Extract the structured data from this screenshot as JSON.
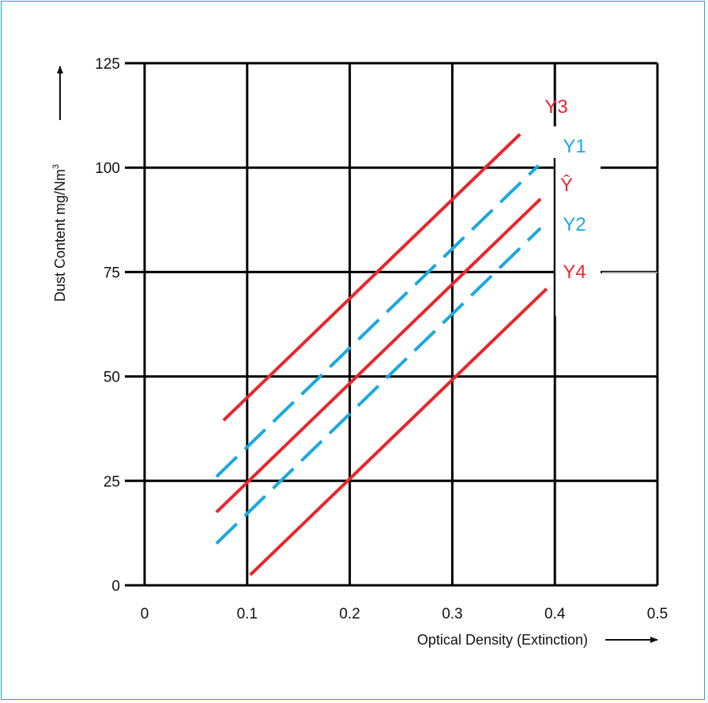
{
  "chart_data": {
    "type": "line",
    "xlabel": "Optical Density (Extinction)",
    "ylabel": "Dust Content mg/Nm",
    "ylabel_superscript": "3",
    "x_ticks": [
      "0",
      "0.1",
      "0.2",
      "0.3",
      "0.4",
      "0.5"
    ],
    "y_ticks": [
      "0",
      "25",
      "50",
      "75",
      "100",
      "125"
    ],
    "xlim": [
      0,
      0.5
    ],
    "ylim": [
      0,
      125
    ],
    "grid": true,
    "series": [
      {
        "name": "Y3",
        "color": "#e8262c",
        "style": "solid",
        "x": [
          0.077,
          0.366
        ],
        "y": [
          39.5,
          108
        ]
      },
      {
        "name": "Y1",
        "color": "#1aa8e0",
        "style": "dashed",
        "x": [
          0.07,
          0.384
        ],
        "y": [
          26,
          100.5
        ]
      },
      {
        "name": "Ŷ",
        "color": "#e8262c",
        "style": "solid",
        "x": [
          0.07,
          0.386
        ],
        "y": [
          17.5,
          92.5
        ]
      },
      {
        "name": "Y2",
        "color": "#1aa8e0",
        "style": "dashed",
        "x": [
          0.07,
          0.386
        ],
        "y": [
          10,
          85.5
        ]
      },
      {
        "name": "Y4",
        "color": "#e8262c",
        "style": "solid",
        "x": [
          0.103,
          0.392
        ],
        "y": [
          2.5,
          71
        ]
      }
    ],
    "legend_labels": [
      {
        "text": "Y3",
        "color": "#e8262c"
      },
      {
        "text": "Y1",
        "color": "#1aa8e0"
      },
      {
        "text": "Ŷ",
        "color": "#e8262c"
      },
      {
        "text": "Y2",
        "color": "#1aa8e0"
      },
      {
        "text": "Y4",
        "color": "#e8262c"
      }
    ]
  }
}
